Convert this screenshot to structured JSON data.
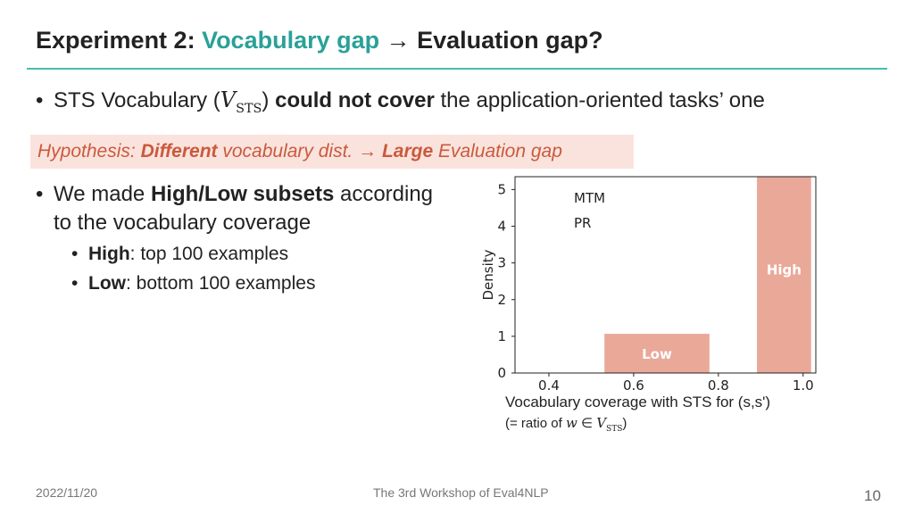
{
  "title": {
    "prefix": "Experiment 2: ",
    "accent": "Vocabulary gap",
    "suffix": " → Evaluation gap?"
  },
  "bullet1": {
    "text_a": "STS Vocabulary (",
    "symbol": "V",
    "subscript": "STS",
    "text_b": ") ",
    "bold": "could not cover",
    "text_c": " the application-oriented tasks’ one"
  },
  "hypothesis": {
    "a": "Hypothesis: ",
    "b": "Different",
    "c": " vocabulary dist. → ",
    "d": "Large",
    "e": " Evaluation gap"
  },
  "bullet2": {
    "text_a": "We made ",
    "bold": "High/Low subsets",
    "text_b": " according",
    "line2": "to the vocabulary coverage"
  },
  "sub1": {
    "bold": "High",
    "text": ": top 100 examples"
  },
  "sub2": {
    "bold": "Low",
    "text": ": bottom 100 examples"
  },
  "chart_data": {
    "type": "bar",
    "xlabel": "Vocabulary coverage with STS for (s,s')",
    "ylabel": "Density",
    "xlim": [
      0.32,
      1.03
    ],
    "ylim": [
      0,
      5.35
    ],
    "xticks": [
      0.4,
      0.6,
      0.8,
      1.0
    ],
    "xtick_labels": [
      "0.4",
      "0.6",
      "0.8",
      "1.0"
    ],
    "yticks": [
      0,
      1,
      2,
      3,
      4,
      5
    ],
    "ytick_labels": [
      "0",
      "1",
      "2",
      "3",
      "4",
      "5"
    ],
    "bars": [
      {
        "label": "Low",
        "x0": 0.53,
        "x1": 0.78,
        "value": 1.08
      },
      {
        "label": "High",
        "x0": 0.89,
        "x1": 1.02,
        "value": 5.4
      }
    ],
    "legend_text": [
      "MTM",
      "PR"
    ],
    "legend_position": "top-left",
    "bar_color": "#eaa899",
    "note_a": "(= ratio of ",
    "note_symbol": "w",
    "note_b": " ∈ ",
    "note_symbol2": "V",
    "note_sub": "STS",
    "note_c": ")"
  },
  "footer": {
    "date": "2022/11/20",
    "venue": "The 3rd Workshop of Eval4NLP",
    "page": "10"
  }
}
